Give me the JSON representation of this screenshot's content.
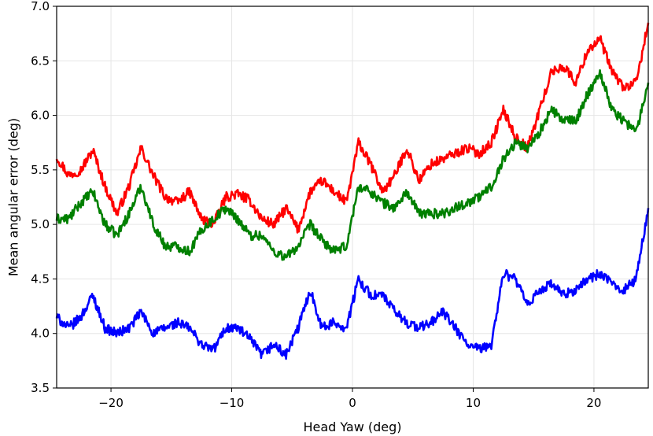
{
  "chart_data": {
    "type": "line",
    "title": "",
    "xlabel": "Head Yaw (deg)",
    "ylabel": "Mean angular error (deg)",
    "xlim": [
      -24.5,
      24.5
    ],
    "ylim": [
      3.5,
      7.0
    ],
    "xticks": [
      -20,
      -10,
      0,
      10,
      20
    ],
    "xtick_labels": [
      "−20",
      "−10",
      "0",
      "10",
      "20"
    ],
    "yticks": [
      3.5,
      4.0,
      4.5,
      5.0,
      5.5,
      6.0,
      6.5,
      7.0
    ],
    "ytick_labels": [
      "3.5",
      "4.0",
      "4.5",
      "5.0",
      "5.5",
      "6.0",
      "6.5",
      "7.0"
    ],
    "grid": true,
    "legend": "none",
    "x": [
      -24.5,
      -23.5,
      -22.5,
      -21.5,
      -20.5,
      -19.5,
      -18.5,
      -17.5,
      -16.5,
      -15.5,
      -14.5,
      -13.5,
      -12.5,
      -11.5,
      -10.5,
      -9.5,
      -8.5,
      -7.5,
      -6.5,
      -5.5,
      -4.5,
      -3.5,
      -2.5,
      -1.5,
      -0.5,
      0.5,
      1.5,
      2.5,
      3.5,
      4.5,
      5.5,
      6.5,
      7.5,
      8.5,
      9.5,
      10.5,
      11.5,
      12.5,
      13.5,
      14.5,
      15.5,
      16.5,
      17.5,
      18.5,
      19.5,
      20.5,
      21.5,
      22.5,
      23.5,
      24.5
    ],
    "series": [
      {
        "color": "#ff0000",
        "values": [
          5.62,
          5.45,
          5.5,
          5.68,
          5.35,
          5.1,
          5.35,
          5.7,
          5.45,
          5.25,
          5.2,
          5.3,
          5.05,
          5.0,
          5.25,
          5.28,
          5.22,
          5.05,
          5.0,
          5.15,
          4.95,
          5.3,
          5.4,
          5.3,
          5.2,
          5.75,
          5.55,
          5.3,
          5.45,
          5.7,
          5.4,
          5.55,
          5.6,
          5.65,
          5.7,
          5.65,
          5.75,
          6.05,
          5.8,
          5.7,
          6.05,
          6.4,
          6.45,
          6.3,
          6.6,
          6.7,
          6.4,
          6.25,
          6.3,
          6.85
        ]
      },
      {
        "color": "#008000",
        "values": [
          5.05,
          5.05,
          5.2,
          5.3,
          5.0,
          4.9,
          5.1,
          5.35,
          5.0,
          4.8,
          4.8,
          4.75,
          4.95,
          5.05,
          5.15,
          5.05,
          4.9,
          4.9,
          4.75,
          4.7,
          4.8,
          5.0,
          4.85,
          4.75,
          4.8,
          5.35,
          5.3,
          5.2,
          5.15,
          5.3,
          5.1,
          5.1,
          5.1,
          5.15,
          5.2,
          5.25,
          5.35,
          5.6,
          5.75,
          5.7,
          5.85,
          6.05,
          5.95,
          5.95,
          6.2,
          6.4,
          6.05,
          5.95,
          5.85,
          6.3
        ]
      },
      {
        "color": "#0000ff",
        "values": [
          4.15,
          4.05,
          4.15,
          4.35,
          4.05,
          4.0,
          4.05,
          4.2,
          4.0,
          4.05,
          4.1,
          4.05,
          3.9,
          3.85,
          4.05,
          4.05,
          3.95,
          3.8,
          3.9,
          3.8,
          4.05,
          4.4,
          4.05,
          4.1,
          4.05,
          4.5,
          4.35,
          4.35,
          4.2,
          4.1,
          4.05,
          4.1,
          4.2,
          4.05,
          3.9,
          3.85,
          3.9,
          4.55,
          4.5,
          4.25,
          4.4,
          4.45,
          4.35,
          4.4,
          4.5,
          4.55,
          4.45,
          4.4,
          4.5,
          5.15
        ]
      }
    ]
  }
}
